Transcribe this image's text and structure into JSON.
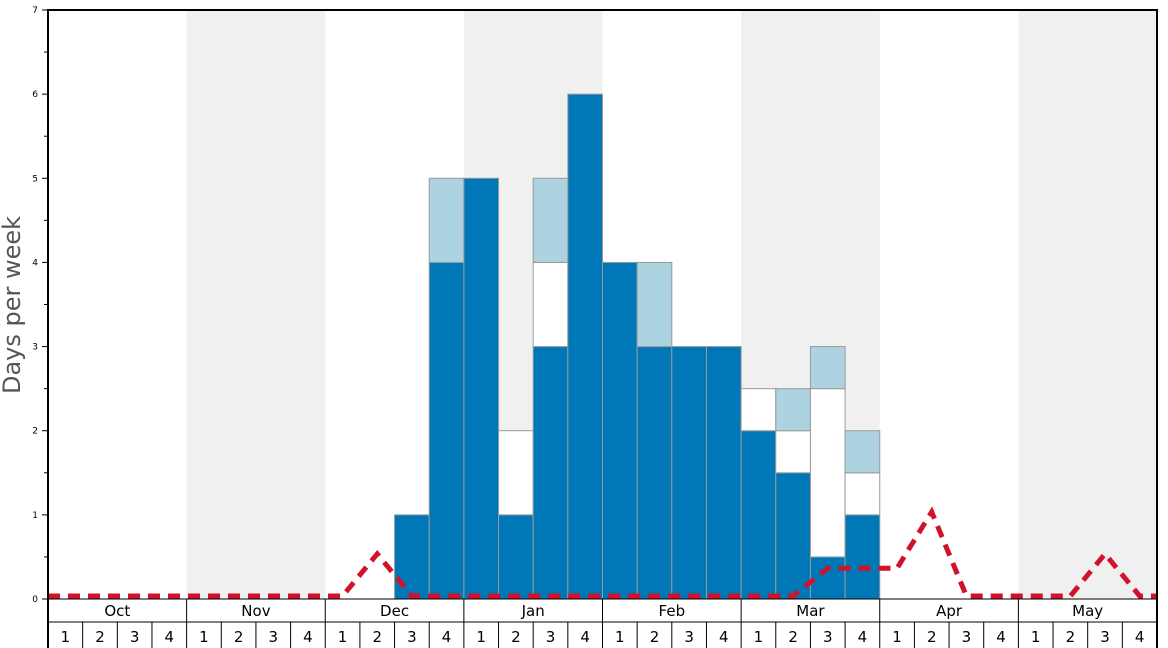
{
  "chart_data": {
    "type": "bar",
    "ylabel": "Days per week",
    "ylim": [
      0,
      7
    ],
    "y_ticks": [
      "0",
      "1",
      "2",
      "3",
      "4",
      "5",
      "6",
      "7"
    ],
    "months": [
      "Oct",
      "Nov",
      "Dec",
      "Jan",
      "Feb",
      "Mar",
      "Apr",
      "May"
    ],
    "weeks": [
      "1",
      "2",
      "3",
      "4"
    ],
    "stacked": true,
    "colors": {
      "dark": "#0077b6",
      "white": "#ffffff",
      "light": "#acd3df",
      "line": "#d0122b",
      "shade": "#f0f0f0"
    },
    "series": [
      {
        "color_key": "dark",
        "values": [
          0,
          0,
          0,
          0,
          0,
          0,
          0,
          0,
          0,
          0,
          1,
          4,
          5,
          1,
          3,
          6,
          4,
          3,
          3,
          3,
          2,
          1.5,
          0.5,
          1,
          0,
          0,
          0,
          0,
          0,
          0,
          0,
          0
        ]
      },
      {
        "color_key": "white",
        "values": [
          0,
          0,
          0,
          0,
          0,
          0,
          0,
          0,
          0,
          0,
          0,
          0,
          0,
          1,
          1,
          0,
          0,
          0,
          0,
          0,
          0.5,
          0.5,
          2,
          0.5,
          0,
          0,
          0,
          0,
          0,
          0,
          0,
          0
        ]
      },
      {
        "color_key": "light",
        "values": [
          0,
          0,
          0,
          0,
          0,
          0,
          0,
          0,
          0,
          0,
          0,
          1,
          0,
          0,
          1,
          0,
          0,
          1,
          0,
          0,
          0,
          0.5,
          0.5,
          0.5,
          0,
          0,
          0,
          0,
          0,
          0,
          0,
          0
        ]
      }
    ],
    "line": {
      "style": "dashed",
      "values": [
        0,
        0,
        0,
        0,
        0,
        0,
        0,
        0,
        0,
        0.5,
        0,
        0,
        0,
        0,
        0,
        0,
        0,
        0,
        0,
        0,
        0,
        0,
        0.33,
        0.33,
        0.33,
        1,
        0,
        0,
        0,
        0,
        0.5,
        0
      ]
    },
    "shaded_months": [
      "Nov",
      "Jan",
      "Mar",
      "May"
    ]
  }
}
